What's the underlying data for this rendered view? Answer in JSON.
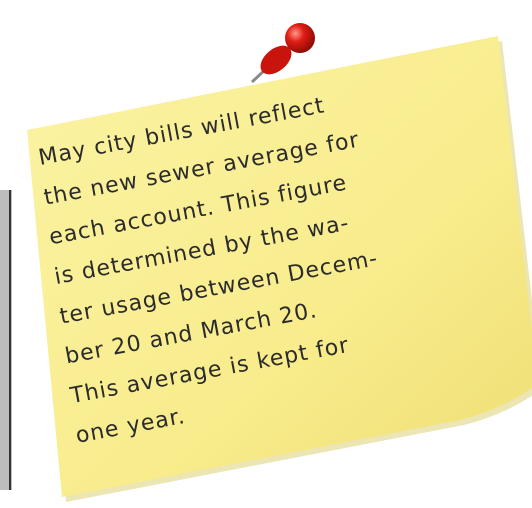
{
  "note": {
    "lines": [
      "May city bills will reflect",
      "the new sewer average for",
      "each account.  This figure",
      "is determined by the wa-",
      "ter usage between Decem-",
      "ber 20 and March 20.",
      "This average is kept for",
      "one year."
    ]
  }
}
